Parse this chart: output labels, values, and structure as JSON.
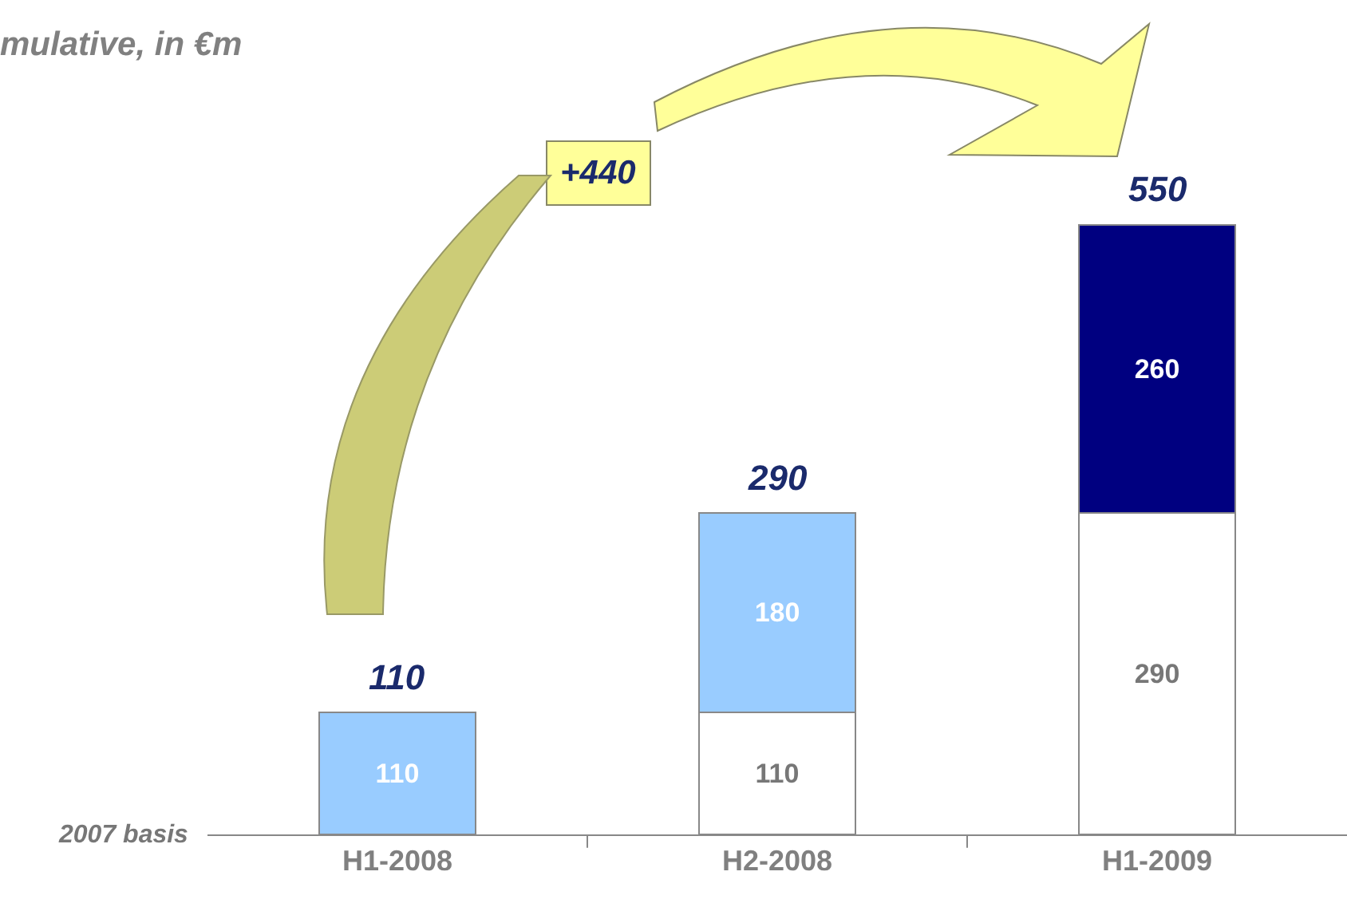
{
  "chart_data": {
    "type": "bar",
    "subtitle": "mulative, in €m",
    "categories": [
      "H1-2008",
      "H2-2008",
      "H1-2009"
    ],
    "stacked": true,
    "data_labels": true,
    "series": [
      {
        "color": "#ffffff",
        "values": [
          null,
          110,
          290
        ]
      },
      {
        "colors": [
          "#99ccff",
          "#99ccff",
          "#000080"
        ],
        "values": [
          110,
          180,
          260
        ]
      }
    ],
    "totals": [
      "110",
      "290",
      "550"
    ],
    "annotations": [
      "+440",
      "2007 basis"
    ]
  }
}
